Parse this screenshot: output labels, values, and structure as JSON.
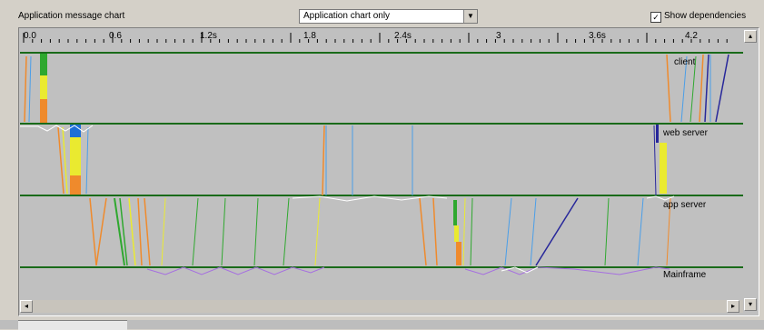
{
  "header": {
    "title": "Application message chart",
    "view_select": "Application chart only",
    "show_dependencies_label": "Show dependencies",
    "show_dependencies_checked": true
  },
  "ruler": {
    "ticks": [
      "0.0",
      "0.6",
      "1.2s",
      "1.8",
      "2.4s",
      "3",
      "3.6s",
      "4.2"
    ]
  },
  "lanes": [
    "client",
    "web server",
    "app server",
    "Mainframe"
  ],
  "colors": {
    "lane_line": "#1a6b1a",
    "orange": "#ef8a2c",
    "green": "#2fa82f",
    "yellow": "#eaea30",
    "blue": "#4a9ee8",
    "navy": "#27279a",
    "purple": "#a66fe0",
    "white": "#ffffff"
  }
}
